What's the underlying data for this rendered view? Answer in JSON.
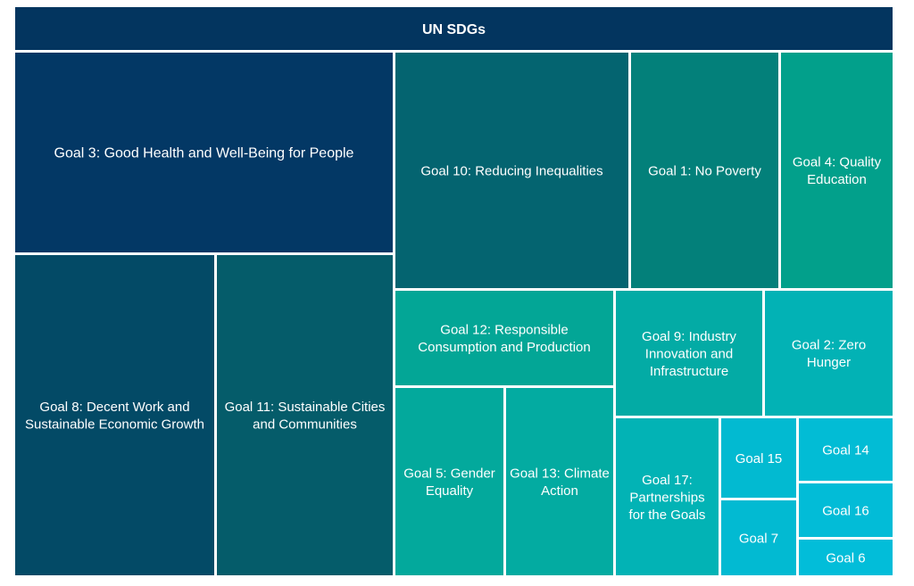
{
  "chart_data": {
    "type": "treemap",
    "title": "UN SDGs",
    "tiles": [
      {
        "label": "Goal 3: Good Health and Well-Being for People",
        "color": "#033865"
      },
      {
        "label": "Goal 8: Decent Work and Sustainable Economic Growth",
        "color": "#034a66"
      },
      {
        "label": "Goal 11: Sustainable Cities and Communities",
        "color": "#055c6a"
      },
      {
        "label": "Goal 10: Reducing Inequalities",
        "color": "#046470"
      },
      {
        "label": "Goal 1:  No Poverty",
        "color": "#03807a"
      },
      {
        "label": "Goal 4: Quality Education",
        "color": "#02a08b"
      },
      {
        "label": "Goal 12: Responsible Consumption and Production",
        "color": "#03a696"
      },
      {
        "label": "Goal 9:  Industry Innovation and Infrastructure",
        "color": "#03aba5"
      },
      {
        "label": "Goal 2: Zero Hunger",
        "color": "#02b2b5"
      },
      {
        "label": "Goal 5: Gender Equality",
        "color": "#03a99c"
      },
      {
        "label": "Goal 13: Climate Action",
        "color": "#03aba1"
      },
      {
        "label": "Goal 17: Partnerships for the Goals",
        "color": "#02b3b5"
      },
      {
        "label": "Goal 15",
        "color": "#02bad1"
      },
      {
        "label": "Goal 7",
        "color": "#02bad2"
      },
      {
        "label": "Goal 14",
        "color": "#02bcd5"
      },
      {
        "label": "Goal 16",
        "color": "#02bcd7"
      },
      {
        "label": "Goal 6",
        "color": "#02bdd9"
      }
    ]
  }
}
